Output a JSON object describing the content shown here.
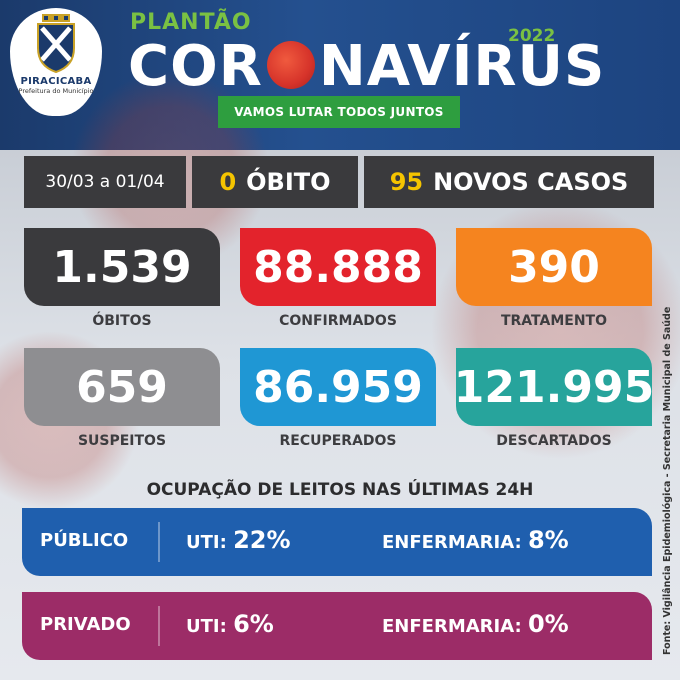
{
  "header": {
    "city": "PIRACICABA",
    "city_sub": "Prefeitura do Município",
    "kicker": "PLANTÃO",
    "title_part1": "COR",
    "title_part2": "NAVÍRUS",
    "year": "2022",
    "slogan": "VAMOS LUTAR TODOS JUNTOS"
  },
  "summary": {
    "period": "30/03 a 01/04",
    "deaths_count": "0",
    "deaths_label": "ÓBITO",
    "new_cases_count": "95",
    "new_cases_label": "NOVOS CASOS"
  },
  "stats": [
    {
      "value": "1.539",
      "label": "ÓBITOS",
      "color": "#3a3a3d"
    },
    {
      "value": "88.888",
      "label": "CONFIRMADOS",
      "color": "#e3232c"
    },
    {
      "value": "390",
      "label": "TRATAMENTO",
      "color": "#f5841f"
    },
    {
      "value": "659",
      "label": "SUSPEITOS",
      "color": "#8e8e91"
    },
    {
      "value": "86.959",
      "label": "RECUPERADOS",
      "color": "#1f97d4"
    },
    {
      "value": "121.995",
      "label": "DESCARTADOS",
      "color": "#27a49c"
    }
  ],
  "occupancy": {
    "title": "OCUPAÇÃO DE LEITOS NAS ÚLTIMAS 24H",
    "public": {
      "name": "PÚBLICO",
      "uti_label": "UTI:",
      "uti_value": "22%",
      "enf_label": "ENFERMARIA:",
      "enf_value": "8%",
      "color": "#1f5fae"
    },
    "private": {
      "name": "PRIVADO",
      "uti_label": "UTI:",
      "uti_value": "6%",
      "enf_label": "ENFERMARIA:",
      "enf_value": "0%",
      "color": "#9c2c67"
    }
  },
  "source": "Fonte: Vigilância Epidemiológica - Secretaria Municipal de Saúde"
}
